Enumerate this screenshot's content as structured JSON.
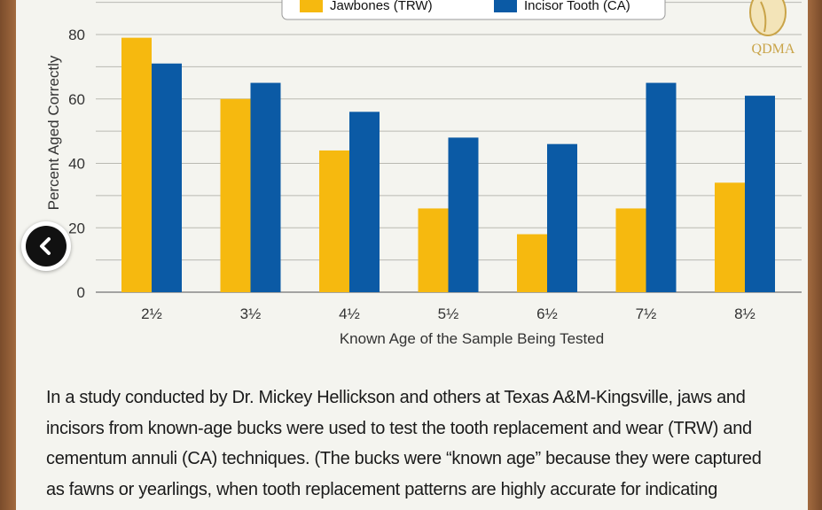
{
  "chart_data": {
    "type": "bar",
    "categories": [
      "2½",
      "3½",
      "4½",
      "5½",
      "6½",
      "7½",
      "8½"
    ],
    "series": [
      {
        "name": "Jawbones (TRW)",
        "color": "#f6b90f",
        "values": [
          79,
          60,
          44,
          26,
          18,
          26,
          34
        ]
      },
      {
        "name": "Incisor Tooth (CA)",
        "color": "#0b5aa5",
        "values": [
          71,
          65,
          56,
          48,
          46,
          65,
          61
        ]
      }
    ],
    "xlabel": "Known Age of the Sample Being Tested",
    "ylabel": "Percent Aged Correctly",
    "ylim": [
      0,
      100
    ],
    "yticks": [
      0,
      20,
      40,
      60,
      80
    ],
    "grid": true,
    "legend_position": "top"
  },
  "logo": {
    "text": "QDMA"
  },
  "caption": {
    "lines": [
      "In a study conducted by Dr. Mickey Hellickson and others at Texas A&M-Kingsville, jaws and",
      "incisors from known-age bucks were used to test the tooth replacement and wear (TRW) and",
      "cementum annuli (CA) techniques. (The bucks were “known age” because they were captured",
      "as fawns or yearlings, when tooth replacement patterns are highly accurate for indicating"
    ]
  },
  "nav": {
    "back_icon": "chevron-left-icon"
  }
}
